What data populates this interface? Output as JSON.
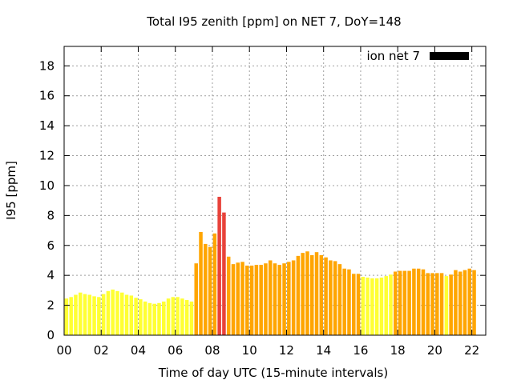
{
  "chart_data": {
    "type": "bar",
    "title": "Total I95 zenith [ppm] on NET 7, DoY=148",
    "xlabel": "Time of day UTC (15-minute intervals)",
    "ylabel": "I95 [ppm]",
    "xlim": [
      0,
      22.75
    ],
    "ylim": [
      0,
      19.3
    ],
    "xticks": [
      0,
      2,
      4,
      6,
      8,
      10,
      12,
      14,
      16,
      18,
      20,
      22
    ],
    "xtick_labels": [
      "00",
      "02",
      "04",
      "06",
      "08",
      "10",
      "12",
      "14",
      "16",
      "18",
      "20",
      "22"
    ],
    "yticks": [
      0,
      2,
      4,
      6,
      8,
      10,
      12,
      14,
      16,
      18
    ],
    "grid": true,
    "legend": {
      "position": "top-right",
      "label": "ion net 7",
      "color": "#000000"
    },
    "interval_hours": 0.25,
    "colors": {
      "low": "#ffff33",
      "mid": "#ffa500",
      "high": "#e8423a"
    },
    "values": [
      2.45,
      2.55,
      2.7,
      2.85,
      2.75,
      2.7,
      2.6,
      2.55,
      2.75,
      2.95,
      3.05,
      2.95,
      2.85,
      2.7,
      2.65,
      2.5,
      2.4,
      2.25,
      2.15,
      2.1,
      2.15,
      2.25,
      2.45,
      2.55,
      2.55,
      2.45,
      2.35,
      2.25,
      4.8,
      6.9,
      6.1,
      5.9,
      6.8,
      9.25,
      8.2,
      5.25,
      4.75,
      4.85,
      4.9,
      4.65,
      4.65,
      4.7,
      4.7,
      4.8,
      5.0,
      4.8,
      4.7,
      4.8,
      4.9,
      5.0,
      5.3,
      5.5,
      5.6,
      5.35,
      5.55,
      5.35,
      5.2,
      5.0,
      4.95,
      4.75,
      4.45,
      4.4,
      4.1,
      4.1,
      3.9,
      3.85,
      3.8,
      3.8,
      3.85,
      3.95,
      4.05,
      4.25,
      4.3,
      4.3,
      4.3,
      4.45,
      4.45,
      4.4,
      4.15,
      4.15,
      4.15,
      4.15,
      3.95,
      4.05,
      4.35,
      4.25,
      4.35,
      4.45,
      4.35
    ],
    "bar_levels": [
      "low",
      "low",
      "low",
      "low",
      "low",
      "low",
      "low",
      "low",
      "low",
      "low",
      "low",
      "low",
      "low",
      "low",
      "low",
      "low",
      "low",
      "low",
      "low",
      "low",
      "low",
      "low",
      "low",
      "low",
      "low",
      "low",
      "low",
      "low",
      "mid",
      "mid",
      "mid",
      "mid",
      "mid",
      "high",
      "high",
      "mid",
      "mid",
      "mid",
      "mid",
      "mid",
      "mid",
      "mid",
      "mid",
      "mid",
      "mid",
      "mid",
      "mid",
      "mid",
      "mid",
      "mid",
      "mid",
      "mid",
      "mid",
      "mid",
      "mid",
      "mid",
      "mid",
      "mid",
      "mid",
      "mid",
      "mid",
      "mid",
      "mid",
      "mid",
      "low",
      "low",
      "low",
      "low",
      "low",
      "low",
      "low",
      "mid",
      "mid",
      "mid",
      "mid",
      "mid",
      "mid",
      "mid",
      "mid",
      "mid",
      "mid",
      "mid",
      "low",
      "mid",
      "mid",
      "mid",
      "mid",
      "mid",
      "mid"
    ]
  }
}
